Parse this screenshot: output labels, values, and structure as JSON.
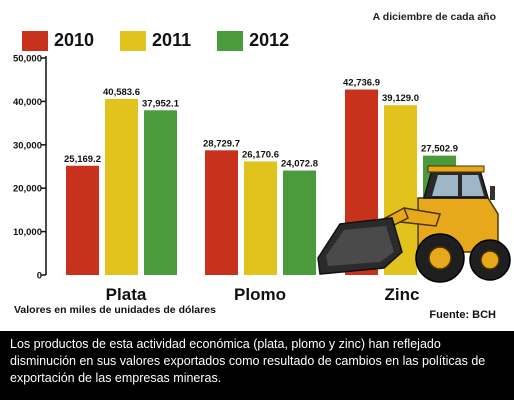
{
  "chart_data": {
    "type": "bar",
    "subtitle": "A diciembre de cada año",
    "categories": [
      "Plata",
      "Plomo",
      "Zinc"
    ],
    "series": [
      {
        "name": "2010",
        "color": "#c8321c",
        "values": [
          25169.2,
          28729.7,
          42736.9
        ],
        "labels": [
          "25,169.2",
          "28,729.7",
          "42,736.9"
        ]
      },
      {
        "name": "2011",
        "color": "#e2c21c",
        "values": [
          40583.6,
          26170.6,
          39129.0
        ],
        "labels": [
          "40,583.6",
          "26,170.6",
          "39,129.0"
        ]
      },
      {
        "name": "2012",
        "color": "#4b9a3c",
        "values": [
          37952.1,
          24072.8,
          27502.9
        ],
        "labels": [
          "37,952.1",
          "24,072.8",
          "27,502.9"
        ]
      }
    ],
    "yticks": [
      0,
      10000,
      20000,
      30000,
      40000,
      50000
    ],
    "ytick_labels": [
      "0",
      "10,000",
      "20,000",
      "30,000",
      "40,000",
      "50,000"
    ],
    "ylim": [
      0,
      50000
    ],
    "grid": false,
    "legend_position": "top-left",
    "ylabel": "Valores en miles de unidades de dólares",
    "source": "Fuente: BCH"
  },
  "footer": {
    "text": "Los productos de esta actividad económica (plata, plomo y zinc) han reflejado disminución en sus valores exportados como resultado de cambios en las políticas de exportación de las empresas mineras."
  },
  "illustration": {
    "icon": "wheel-loader-icon",
    "body_color": "#e8a81c"
  }
}
